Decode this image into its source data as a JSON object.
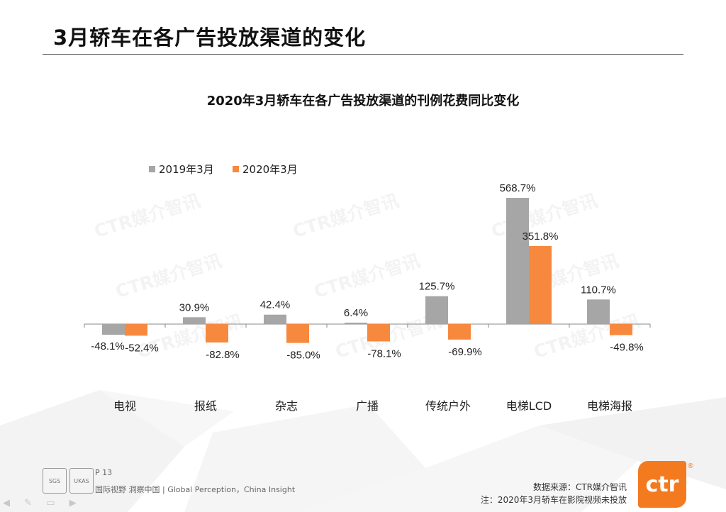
{
  "header": {
    "title": "3月轿车在各广告投放渠道的变化"
  },
  "watermark": "CTR媒介智讯",
  "colors": {
    "series1": "#a6a6a6",
    "series2": "#f7893f",
    "axis": "#888888"
  },
  "chart_data": {
    "type": "bar",
    "title": "2020年3月轿车在各广告投放渠道的刊例花费同比变化",
    "categories": [
      "电视",
      "报纸",
      "杂志",
      "广播",
      "传统户外",
      "电梯LCD",
      "电梯海报"
    ],
    "series": [
      {
        "name": "2019年3月",
        "values": [
          -48.1,
          30.9,
          42.4,
          6.4,
          125.7,
          568.7,
          110.7
        ],
        "labels": [
          "-48.1%",
          "30.9%",
          "42.4%",
          "6.4%",
          "125.7%",
          "568.7%",
          "110.7%"
        ]
      },
      {
        "name": "2020年3月",
        "values": [
          -52.4,
          -82.8,
          -85.0,
          -78.1,
          -69.9,
          351.8,
          -49.8
        ],
        "labels": [
          "-52.4%",
          "-82.8%",
          "-85.0%",
          "-78.1%",
          "-69.9%",
          "351.8%",
          "-49.8%"
        ]
      }
    ],
    "legend_position": "top-left",
    "xlabel": "",
    "ylabel": "",
    "grid": false
  },
  "footer": {
    "page": "P 13",
    "tagline": "国际视野  洞察中国 |  Global Perception，China Insight",
    "source_line1": "数据来源：CTR媒介智讯",
    "source_line2": "注：2020年3月轿车在影院视频未投放",
    "logo_text": "ctr",
    "badge1": "SGS",
    "badge2": "UKAS"
  }
}
